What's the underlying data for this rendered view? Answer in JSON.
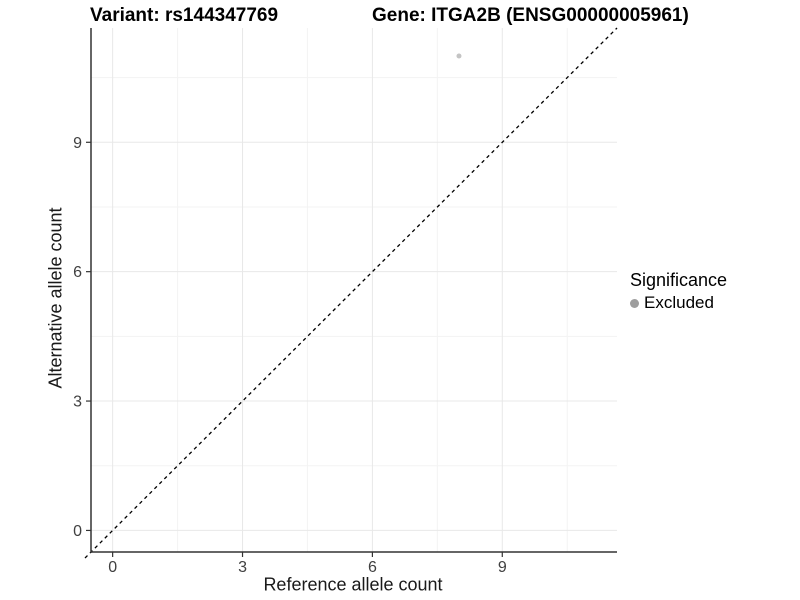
{
  "header": {
    "variant_title": "Variant: rs144347769",
    "gene_title": "Gene: ITGA2B (ENSG00000005961)"
  },
  "chart_data": {
    "type": "scatter",
    "title_left": "Variant: rs144347769",
    "title_right": "Gene: ITGA2B (ENSG00000005961)",
    "xlabel": "Reference allele count",
    "ylabel": "Alternative allele count",
    "xlim": [
      -0.5,
      11.65
    ],
    "ylim": [
      -0.5,
      11.65
    ],
    "x_ticks": [
      0,
      3,
      6,
      9
    ],
    "y_ticks": [
      0,
      3,
      6,
      9
    ],
    "x_minor_gridlines": [
      1.5,
      4.5,
      7.5,
      10.5
    ],
    "y_minor_gridlines": [
      1.5,
      4.5,
      7.5,
      10.5
    ],
    "grid": "on",
    "legend_position": "right",
    "identity_line": {
      "type": "abline",
      "slope": 1,
      "intercept": 0,
      "style": "dashed",
      "color": "#000000"
    },
    "points": [
      {
        "x": 8,
        "y": 11,
        "series": "Excluded",
        "color": "#c4c4c4",
        "radius": 2.5
      }
    ],
    "legend": {
      "title": "Significance",
      "entries": [
        {
          "label": "Excluded",
          "color": "#9e9e9e"
        }
      ]
    },
    "colors": {
      "axis_line": "#333333",
      "tick_label": "#404040",
      "major_grid": "#e8e8e8",
      "minor_grid": "#f3f3f3",
      "background": "#ffffff"
    }
  }
}
